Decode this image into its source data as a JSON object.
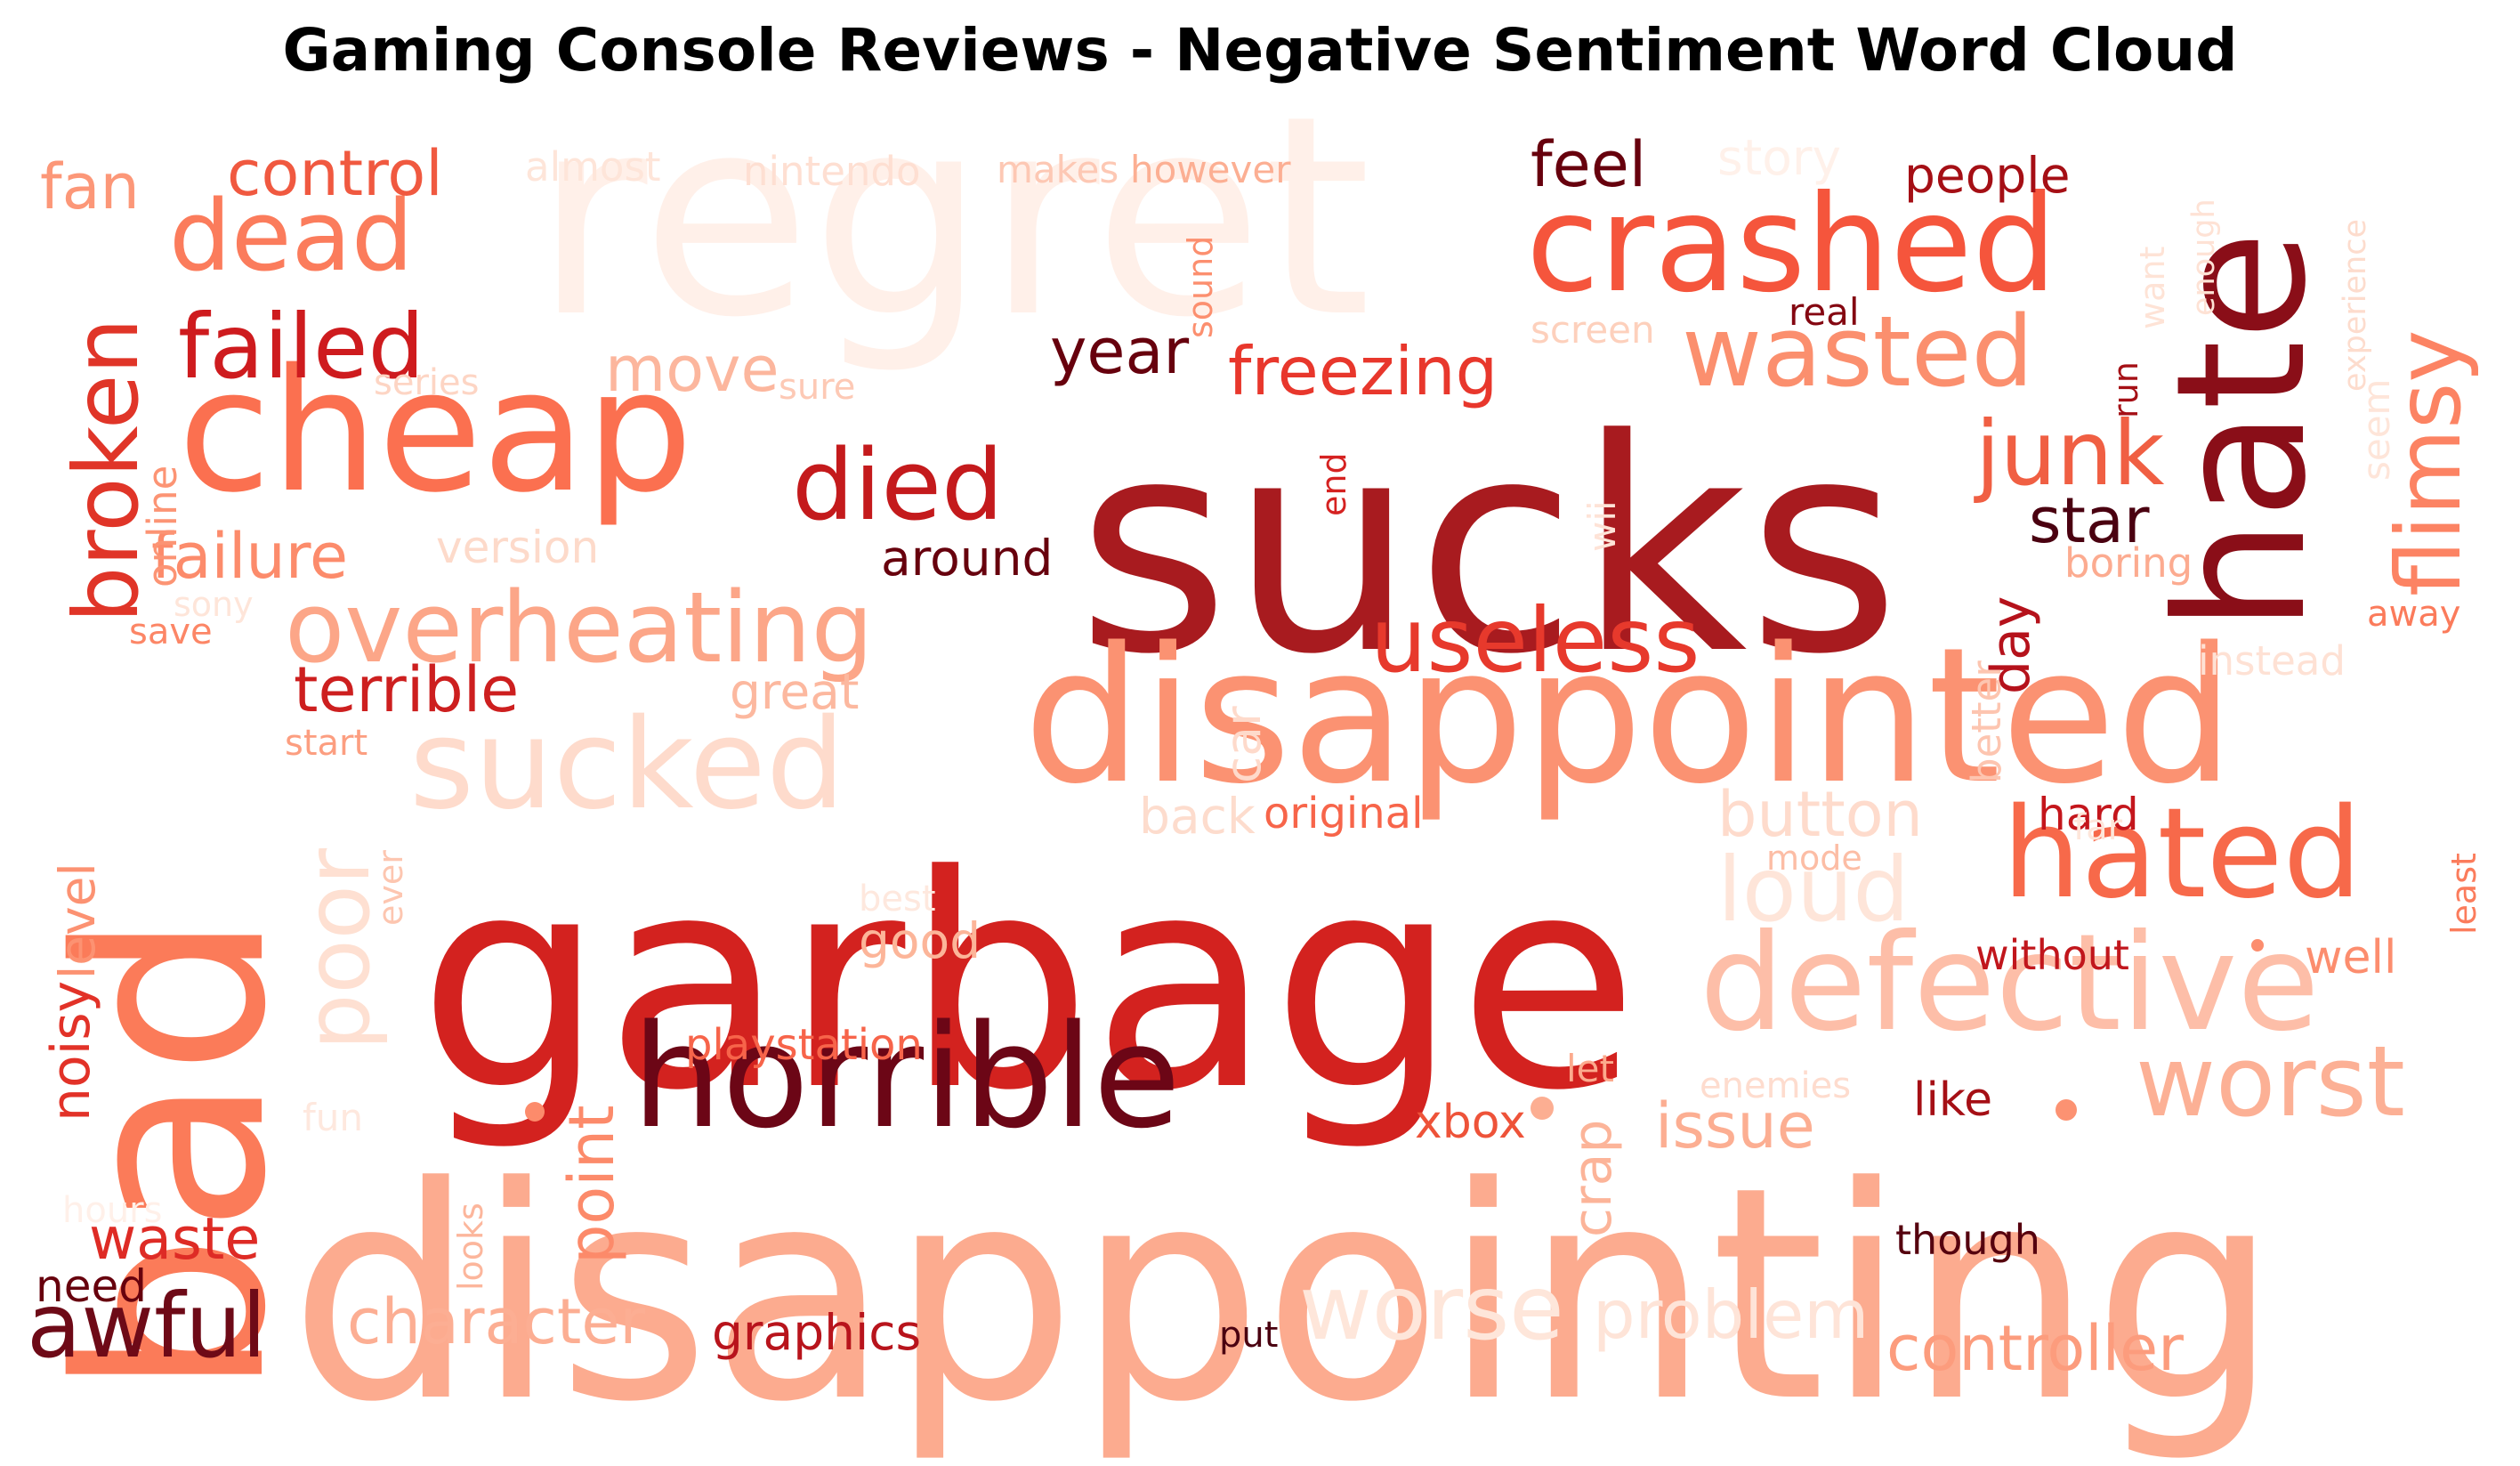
{
  "title": "Gaming Console Reviews - Negative Sentiment Word Cloud",
  "palette": "Reds",
  "words": [
    {
      "text": "sucks",
      "color": "#a81b1f"
    },
    {
      "text": "garbage",
      "color": "#d3221f"
    },
    {
      "text": "disappointing",
      "color": "#fcab8f"
    },
    {
      "text": "disappointed",
      "color": "#fb9272"
    },
    {
      "text": "regret",
      "color": "#fff0e9"
    },
    {
      "text": "bad",
      "color": "#fb7b59"
    },
    {
      "text": "hate",
      "color": "#8a0e18"
    },
    {
      "text": "cheap",
      "color": "#fb7050"
    },
    {
      "text": "horrible",
      "color": "#6c0616"
    },
    {
      "text": "crashed",
      "color": "#f5553c"
    },
    {
      "text": "defective",
      "color": "#fdbea8"
    },
    {
      "text": "hated",
      "color": "#f7694a"
    },
    {
      "text": "worst",
      "color": "#fcb095"
    },
    {
      "text": "sucked",
      "color": "#fedbcc"
    },
    {
      "text": "overheating",
      "color": "#fca688"
    },
    {
      "text": "dead",
      "color": "#fb7c5c"
    },
    {
      "text": "useless",
      "color": "#e7392c"
    },
    {
      "text": "wasted",
      "color": "#fb8f6e"
    },
    {
      "text": "died",
      "color": "#c41a1c"
    },
    {
      "text": "failed",
      "color": "#ce1b1e"
    },
    {
      "text": "broken",
      "color": "#e03528"
    },
    {
      "text": "junk",
      "color": "#f05f43"
    },
    {
      "text": "flimsy",
      "color": "#fc8363"
    },
    {
      "text": "awful",
      "color": "#6e0a17"
    },
    {
      "text": "poor",
      "color": "#fee0d2"
    },
    {
      "text": "loud",
      "color": "#fee5d9"
    },
    {
      "text": "worse",
      "color": "#fee6da"
    },
    {
      "text": "freezing",
      "color": "#e8372c"
    },
    {
      "text": "terrible",
      "color": "#cd1f1f"
    },
    {
      "text": "failure",
      "color": "#fc8b6b"
    },
    {
      "text": "control",
      "color": "#f05940"
    },
    {
      "text": "fan",
      "color": "#fc9778"
    },
    {
      "text": "feel",
      "color": "#67000d"
    },
    {
      "text": "problem",
      "color": "#fee4d8"
    },
    {
      "text": "controller",
      "color": "#fc9c7d"
    },
    {
      "text": "character",
      "color": "#fcae93"
    },
    {
      "text": "graphics",
      "color": "#b8141c"
    },
    {
      "text": "button",
      "color": "#fedbcc"
    },
    {
      "text": "star",
      "color": "#4a0010"
    },
    {
      "text": "waste",
      "color": "#de2b25"
    },
    {
      "text": "noisy",
      "color": "#e23228"
    },
    {
      "text": "level",
      "color": "#fc9272"
    },
    {
      "text": "year",
      "color": "#67000d"
    },
    {
      "text": "move",
      "color": "#fcb69d"
    },
    {
      "text": "point",
      "color": "#fc8a6a"
    },
    {
      "text": "issue",
      "color": "#fcae92"
    },
    {
      "text": "crap",
      "color": "#fcb499"
    },
    {
      "text": "need",
      "color": "#67000d"
    },
    {
      "text": "great",
      "color": "#fcb89f"
    },
    {
      "text": "around",
      "color": "#67000d"
    },
    {
      "text": "version",
      "color": "#fddaca"
    },
    {
      "text": "online",
      "color": "#fc9474"
    },
    {
      "text": "day",
      "color": "#b5121b"
    },
    {
      "text": "hard",
      "color": "#c4161c"
    },
    {
      "text": "people",
      "color": "#a50f15"
    },
    {
      "text": "playstation",
      "color": "#f7644a"
    },
    {
      "text": "xbox",
      "color": "#ee5339"
    },
    {
      "text": "like",
      "color": "#a50f15"
    },
    {
      "text": "without",
      "color": "#c1161c"
    },
    {
      "text": "well",
      "color": "#fc8d6e"
    },
    {
      "text": "though",
      "color": "#55000e"
    },
    {
      "text": "good",
      "color": "#fcb599"
    },
    {
      "text": "back",
      "color": "#fddccd"
    },
    {
      "text": "original",
      "color": "#f7654a"
    },
    {
      "text": "car",
      "color": "#fedacb"
    },
    {
      "text": "better",
      "color": "#fdc5b0"
    },
    {
      "text": "boring",
      "color": "#fcab90"
    },
    {
      "text": "away",
      "color": "#fb7b5b"
    },
    {
      "text": "instead",
      "color": "#fee1d4"
    },
    {
      "text": "story",
      "color": "#fff1ea"
    },
    {
      "text": "almost",
      "color": "#fee5d9"
    },
    {
      "text": "nintendo",
      "color": "#fedfd2"
    },
    {
      "text": "makes",
      "color": "#fdc8b4"
    },
    {
      "text": "however",
      "color": "#fcaf93"
    },
    {
      "text": "sound",
      "color": "#fc8f6f"
    },
    {
      "text": "real",
      "color": "#840711"
    },
    {
      "text": "screen",
      "color": "#fdd0bc"
    },
    {
      "text": "run",
      "color": "#a50f15"
    },
    {
      "text": "want",
      "color": "#fee3d6"
    },
    {
      "text": "enough",
      "color": "#fee2d5"
    },
    {
      "text": "experience",
      "color": "#fddccd"
    },
    {
      "text": "seem",
      "color": "#fee5d9"
    },
    {
      "text": "end",
      "color": "#d52221"
    },
    {
      "text": "wii",
      "color": "#fee3d7"
    },
    {
      "text": "series",
      "color": "#fdd5c4"
    },
    {
      "text": "sure",
      "color": "#fdc9b5"
    },
    {
      "text": "sony",
      "color": "#fee5d9"
    },
    {
      "text": "save",
      "color": "#fc8666"
    },
    {
      "text": "start",
      "color": "#fc9e80"
    },
    {
      "text": "ever",
      "color": "#fdc6b0"
    },
    {
      "text": "best",
      "color": "#fee8de"
    },
    {
      "text": "mode",
      "color": "#fcbda5"
    },
    {
      "text": "far",
      "color": "#fee6da"
    },
    {
      "text": "least",
      "color": "#fb7c5c"
    },
    {
      "text": "let",
      "color": "#fcaa8d"
    },
    {
      "text": "enemies",
      "color": "#fedcce"
    },
    {
      "text": "fun",
      "color": "#fee8de"
    },
    {
      "text": "hours",
      "color": "#fff0e9"
    },
    {
      "text": "looks",
      "color": "#fcb69c"
    },
    {
      "text": "put",
      "color": "#4a0010"
    }
  ]
}
